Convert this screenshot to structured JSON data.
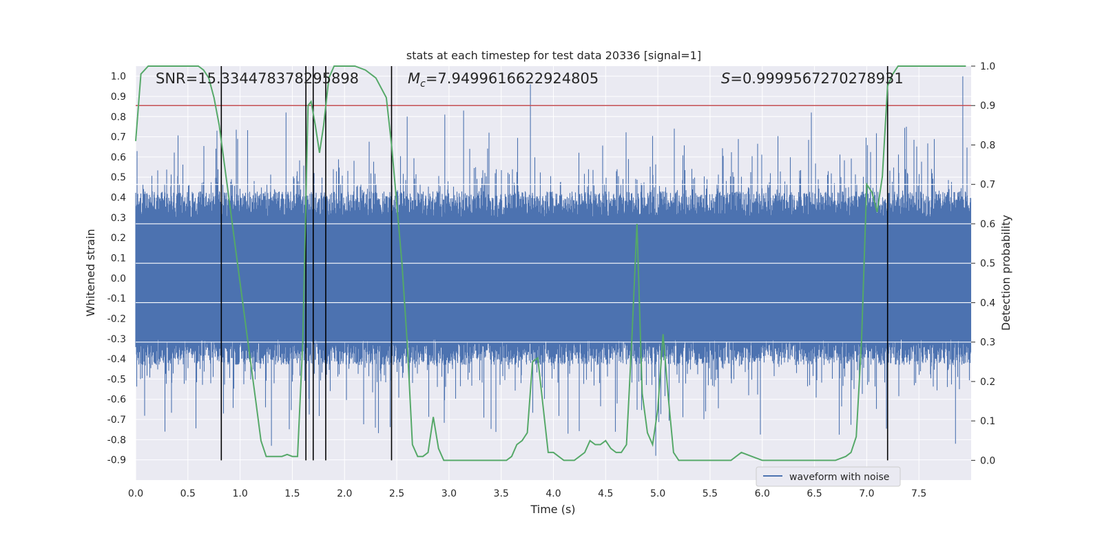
{
  "chart_data": {
    "type": "line",
    "title": "stats at each timestep for test data 20336 [signal=1]",
    "xlabel": "Time (s)",
    "ylabel_left": "Whitened strain",
    "ylabel_right": "Detection probability",
    "xlim": [
      0.0,
      8.0
    ],
    "ylim_left": [
      -1.0,
      1.05
    ],
    "ylim_right": [
      -0.05,
      1.0
    ],
    "xticks": [
      "0.0",
      "0.5",
      "1.0",
      "1.5",
      "2.0",
      "2.5",
      "3.0",
      "3.5",
      "4.0",
      "4.5",
      "5.0",
      "5.5",
      "6.0",
      "6.5",
      "7.0",
      "7.5"
    ],
    "yticks_left": [
      "1.0",
      "0.9",
      "0.8",
      "0.7",
      "0.6",
      "0.5",
      "0.4",
      "0.3",
      "0.2",
      "0.1",
      "0.0",
      "-0.1",
      "-0.2",
      "-0.3",
      "-0.4",
      "-0.5",
      "-0.6",
      "-0.7",
      "-0.8",
      "-0.9"
    ],
    "yticks_right": [
      "1.0",
      "0.9",
      "0.8",
      "0.7",
      "0.6",
      "0.5",
      "0.4",
      "0.3",
      "0.2",
      "0.1",
      "0.0"
    ],
    "annotations": {
      "snr": "SNR=15.334478378295898",
      "mc_symbol": "M",
      "mc_sub": "c",
      "mc_value": "=7.9499616622924805",
      "s_symbol": "S",
      "s_value": "=0.9999567270278931"
    },
    "grid": true,
    "legend": {
      "placement": "bottom-right",
      "entries": [
        "waveform with noise"
      ]
    },
    "colors": {
      "waveform": "#4c72b0",
      "probability": "#55a868",
      "threshold": "#c44e52",
      "markers": "#000000",
      "background": "#eaeaf2",
      "grid": "#ffffff"
    },
    "series": [
      {
        "name": "waveform with noise",
        "axis": "left",
        "style": "noisy-strain",
        "envelope": {
          "core_min": -0.3,
          "core_max": 0.3,
          "peak_max": 1.0,
          "trough_min": -0.88
        }
      },
      {
        "axis": "right",
        "x": [
          0.0,
          0.05,
          0.12,
          0.2,
          0.3,
          0.4,
          0.5,
          0.6,
          0.65,
          0.7,
          0.75,
          0.8,
          0.85,
          0.9,
          0.95,
          1.0,
          1.05,
          1.1,
          1.15,
          1.2,
          1.25,
          1.3,
          1.35,
          1.4,
          1.45,
          1.5,
          1.55,
          1.6,
          1.65,
          1.68,
          1.72,
          1.76,
          1.8,
          1.85,
          1.9,
          1.95,
          2.0,
          2.1,
          2.2,
          2.3,
          2.4,
          2.45,
          2.5,
          2.55,
          2.6,
          2.65,
          2.7,
          2.75,
          2.8,
          2.85,
          2.9,
          2.95,
          3.0,
          3.1,
          3.2,
          3.3,
          3.4,
          3.5,
          3.55,
          3.6,
          3.65,
          3.7,
          3.75,
          3.8,
          3.85,
          3.9,
          3.95,
          4.0,
          4.05,
          4.1,
          4.15,
          4.2,
          4.25,
          4.3,
          4.35,
          4.4,
          4.45,
          4.5,
          4.55,
          4.6,
          4.65,
          4.7,
          4.75,
          4.8,
          4.85,
          4.9,
          4.95,
          5.0,
          5.05,
          5.1,
          5.15,
          5.2,
          5.25,
          5.3,
          5.35,
          5.4,
          5.45,
          5.5,
          5.6,
          5.7,
          5.8,
          5.9,
          6.0,
          6.1,
          6.2,
          6.3,
          6.4,
          6.5,
          6.6,
          6.7,
          6.8,
          6.85,
          6.9,
          6.95,
          7.0,
          7.05,
          7.1,
          7.15,
          7.2,
          7.25,
          7.3,
          7.4,
          7.5,
          7.6,
          7.7,
          7.8,
          7.9,
          7.95
        ],
        "values": [
          0.81,
          0.98,
          1.0,
          1.0,
          1.0,
          1.0,
          1.0,
          1.0,
          0.99,
          0.97,
          0.92,
          0.85,
          0.75,
          0.65,
          0.55,
          0.45,
          0.35,
          0.25,
          0.15,
          0.05,
          0.01,
          0.01,
          0.01,
          0.01,
          0.015,
          0.01,
          0.01,
          0.3,
          0.9,
          0.91,
          0.85,
          0.78,
          0.85,
          0.97,
          1.0,
          1.0,
          1.0,
          1.0,
          0.99,
          0.97,
          0.92,
          0.8,
          0.65,
          0.5,
          0.3,
          0.04,
          0.01,
          0.01,
          0.02,
          0.11,
          0.03,
          0.0,
          0.0,
          0.0,
          0.0,
          0.0,
          0.0,
          0.0,
          0.0,
          0.01,
          0.04,
          0.05,
          0.07,
          0.25,
          0.26,
          0.14,
          0.02,
          0.02,
          0.01,
          0.0,
          0.0,
          0.0,
          0.01,
          0.02,
          0.05,
          0.04,
          0.04,
          0.05,
          0.03,
          0.02,
          0.02,
          0.04,
          0.3,
          0.6,
          0.17,
          0.07,
          0.04,
          0.13,
          0.32,
          0.16,
          0.02,
          0.0,
          0.0,
          0.0,
          0.0,
          0.0,
          0.0,
          0.0,
          0.0,
          0.0,
          0.02,
          0.01,
          0.0,
          0.0,
          0.0,
          0.0,
          0.0,
          0.0,
          0.0,
          0.0,
          0.01,
          0.02,
          0.06,
          0.3,
          0.7,
          0.68,
          0.63,
          0.72,
          0.95,
          0.98,
          1.0,
          1.0,
          1.0,
          1.0,
          1.0,
          1.0,
          1.0,
          1.0
        ]
      }
    ],
    "threshold": {
      "axis": "right",
      "value": 0.9
    },
    "vertical_markers": [
      0.82,
      1.63,
      1.7,
      1.82,
      2.45,
      7.2
    ]
  }
}
